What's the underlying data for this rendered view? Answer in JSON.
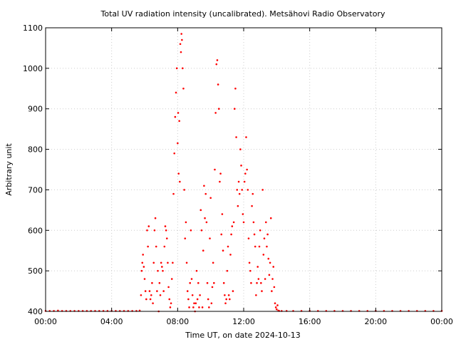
{
  "chart_data": {
    "type": "scatter",
    "title": "Total UV radiation intensity (uncalibrated). Metsähovi Radio Observatory",
    "xlabel": "Time UT, on date 2024-10-13",
    "ylabel": "Arbitrary unit",
    "xlim": [
      0,
      24
    ],
    "ylim": [
      400,
      1100
    ],
    "x_ticks": [
      {
        "value": 0,
        "label": "00:00"
      },
      {
        "value": 4,
        "label": "04:00"
      },
      {
        "value": 8,
        "label": "08:00"
      },
      {
        "value": 12,
        "label": "12:00"
      },
      {
        "value": 16,
        "label": "16:00"
      },
      {
        "value": 20,
        "label": "20:00"
      },
      {
        "value": 24,
        "label": "00:00"
      }
    ],
    "y_ticks": [
      {
        "value": 400,
        "label": "400"
      },
      {
        "value": 500,
        "label": "500"
      },
      {
        "value": 600,
        "label": "600"
      },
      {
        "value": 700,
        "label": "700"
      },
      {
        "value": 800,
        "label": "800"
      },
      {
        "value": 900,
        "label": "900"
      },
      {
        "value": 1000,
        "label": "1000"
      },
      {
        "value": 1100,
        "label": "1100"
      }
    ],
    "grid": true,
    "marker_color": "#ff0000",
    "series": [
      {
        "x": [
          0.0,
          0.25,
          0.5,
          0.75,
          1.0,
          1.25,
          1.5,
          1.75,
          2.0,
          2.25,
          2.5,
          2.75,
          3.0,
          3.25,
          3.5,
          3.75,
          4.0,
          4.25,
          4.5,
          4.75,
          5.0,
          5.25,
          5.5,
          5.7,
          5.78,
          5.82,
          5.86,
          5.9,
          5.95,
          6.0,
          6.05,
          6.1,
          6.15,
          6.2,
          6.25,
          6.3,
          6.35,
          6.4,
          6.45,
          6.5,
          6.55,
          6.6,
          6.65,
          6.7,
          6.75,
          6.8,
          6.85,
          6.9,
          6.95,
          7.0,
          7.05,
          7.1,
          7.15,
          7.2,
          7.25,
          7.3,
          7.35,
          7.4,
          7.45,
          7.5,
          7.55,
          7.6,
          7.65,
          7.7,
          7.75,
          7.8,
          7.85,
          7.9,
          7.95,
          8.0,
          8.03,
          8.06,
          8.1,
          8.13,
          8.16,
          8.2,
          8.23,
          8.26,
          8.3,
          8.35,
          8.4,
          8.45,
          8.5,
          8.55,
          8.6,
          8.65,
          8.7,
          8.75,
          8.8,
          8.85,
          8.9,
          8.95,
          9.0,
          9.05,
          9.1,
          9.15,
          9.2,
          9.25,
          9.3,
          9.35,
          9.4,
          9.45,
          9.5,
          9.55,
          9.6,
          9.65,
          9.7,
          9.75,
          9.8,
          9.85,
          9.9,
          9.95,
          10.0,
          10.05,
          10.1,
          10.15,
          10.2,
          10.25,
          10.3,
          10.35,
          10.4,
          10.45,
          10.5,
          10.55,
          10.6,
          10.65,
          10.7,
          10.75,
          10.8,
          10.85,
          10.9,
          10.95,
          11.0,
          11.05,
          11.1,
          11.15,
          11.2,
          11.25,
          11.3,
          11.35,
          11.4,
          11.45,
          11.5,
          11.55,
          11.6,
          11.65,
          11.7,
          11.75,
          11.8,
          11.85,
          11.9,
          11.95,
          12.0,
          12.05,
          12.1,
          12.15,
          12.2,
          12.25,
          12.3,
          12.35,
          12.4,
          12.45,
          12.5,
          12.55,
          12.6,
          12.65,
          12.7,
          12.75,
          12.8,
          12.85,
          12.9,
          12.95,
          13.0,
          13.05,
          13.1,
          13.15,
          13.2,
          13.25,
          13.3,
          13.35,
          13.4,
          13.45,
          13.5,
          13.55,
          13.6,
          13.65,
          13.7,
          13.75,
          13.8,
          13.85,
          13.9,
          13.95,
          14.0,
          14.05,
          14.1,
          14.15,
          14.3,
          14.6,
          15.0,
          15.5,
          16.0,
          16.5,
          17.0,
          17.5,
          18.0,
          18.5,
          19.0,
          19.5,
          20.0,
          20.5,
          21.0,
          21.5,
          22.0,
          22.5,
          23.0,
          23.5,
          24.0
        ],
        "y": [
          401,
          401,
          401,
          402,
          401,
          401,
          401,
          401,
          401,
          401,
          401,
          401,
          401,
          401,
          401,
          401,
          401,
          401,
          401,
          401,
          401,
          401,
          401,
          402,
          440,
          500,
          520,
          540,
          510,
          480,
          450,
          430,
          600,
          560,
          610,
          450,
          430,
          440,
          470,
          420,
          520,
          600,
          630,
          560,
          450,
          500,
          400,
          470,
          440,
          520,
          510,
          500,
          450,
          560,
          610,
          600,
          580,
          520,
          460,
          430,
          410,
          420,
          480,
          520,
          690,
          790,
          880,
          940,
          1000,
          815,
          890,
          740,
          870,
          720,
          1060,
          1040,
          1085,
          1070,
          1000,
          950,
          700,
          580,
          620,
          520,
          450,
          430,
          410,
          470,
          600,
          480,
          440,
          410,
          420,
          400,
          420,
          500,
          430,
          470,
          410,
          440,
          650,
          600,
          410,
          550,
          710,
          630,
          690,
          620,
          470,
          430,
          410,
          580,
          680,
          420,
          460,
          520,
          470,
          750,
          890,
          1010,
          1020,
          960,
          900,
          720,
          740,
          590,
          640,
          550,
          470,
          440,
          420,
          430,
          500,
          560,
          440,
          430,
          540,
          590,
          610,
          450,
          620,
          900,
          950,
          830,
          700,
          660,
          720,
          690,
          800,
          760,
          700,
          640,
          620,
          720,
          740,
          830,
          750,
          700,
          580,
          520,
          500,
          470,
          660,
          690,
          620,
          590,
          560,
          440,
          470,
          510,
          480,
          560,
          600,
          470,
          450,
          700,
          540,
          580,
          480,
          620,
          560,
          590,
          530,
          490,
          520,
          630,
          450,
          480,
          510,
          460,
          420,
          410,
          405,
          415,
          402,
          401,
          401,
          401,
          401,
          401,
          401,
          401,
          401,
          401,
          401,
          401,
          401,
          401,
          401,
          401,
          401,
          401,
          401,
          401,
          401,
          401,
          401
        ]
      }
    ]
  }
}
